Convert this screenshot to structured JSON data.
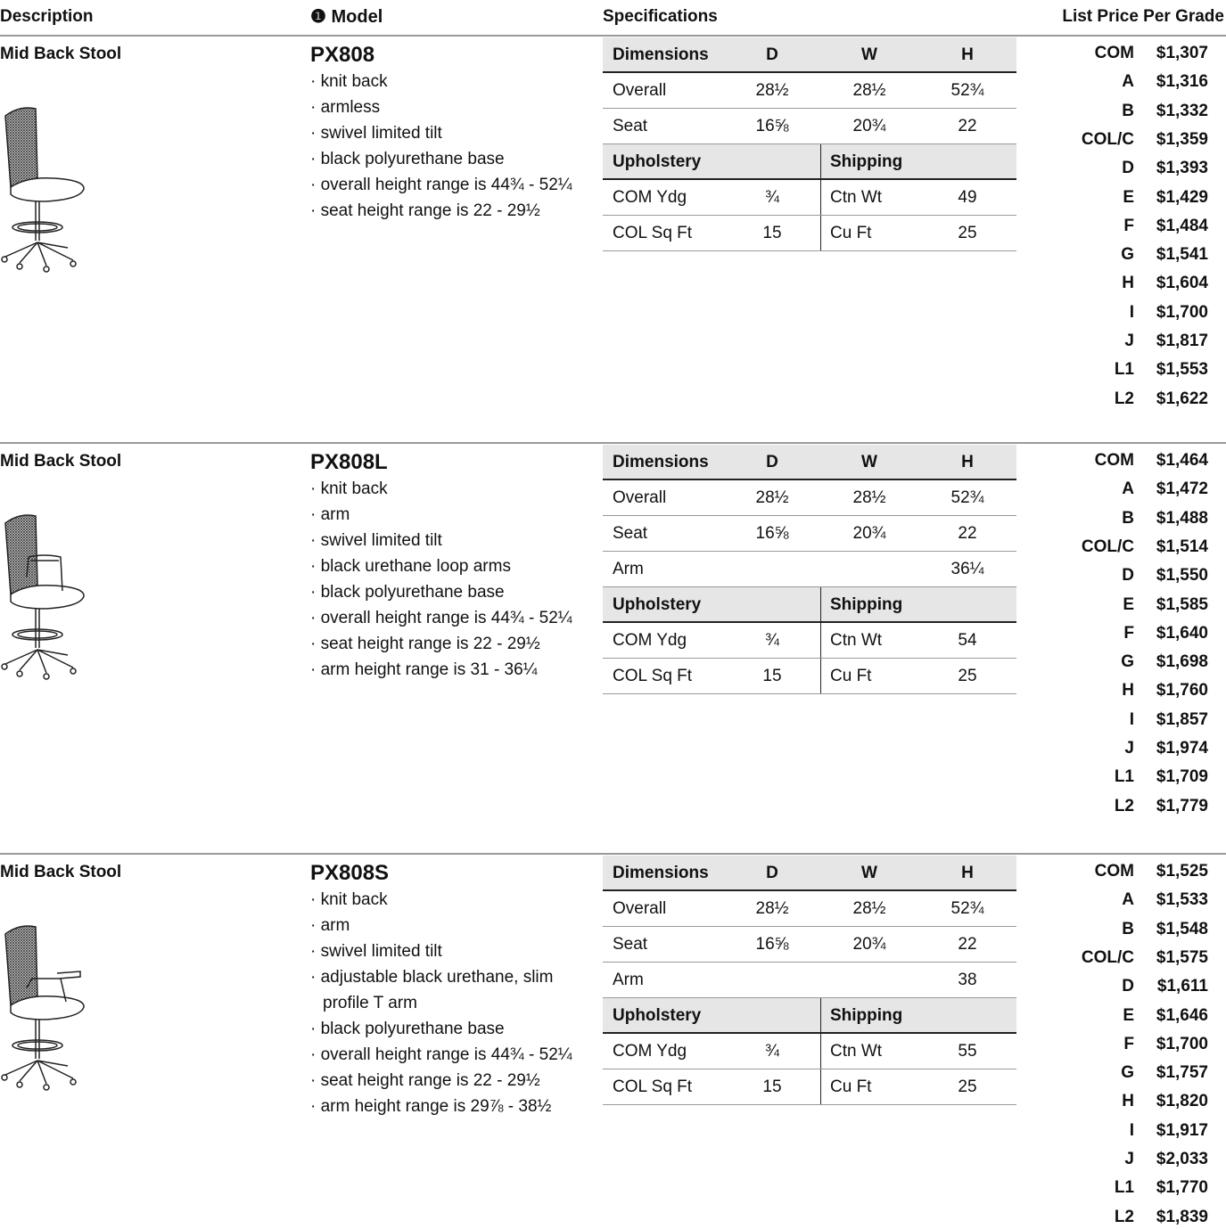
{
  "header": {
    "description": "Description",
    "model": "❶ Model",
    "specifications": "Specifications",
    "price": "List Price Per Grade"
  },
  "products": [
    {
      "description": "Mid Back Stool",
      "model": "PX808",
      "features": [
        "knit back",
        "armless",
        "swivel limited tilt",
        "black polyurethane base",
        "overall height range is 44¾ - 52¼",
        "seat height range is 22 - 29½"
      ],
      "dims_header": [
        "Dimensions",
        "D",
        "W",
        "H"
      ],
      "dims": [
        {
          "label": "Overall",
          "d": "28½",
          "w": "28½",
          "h": "52¾"
        },
        {
          "label": "Seat",
          "d": "16⅝",
          "w": "20¾",
          "h": "22"
        }
      ],
      "upholstery_header": [
        "Upholstery",
        "Shipping"
      ],
      "upholstery": [
        [
          "COM Ydg",
          "¾",
          "Ctn Wt",
          "49"
        ],
        [
          "COL Sq Ft",
          "15",
          "Cu Ft",
          "25"
        ]
      ],
      "prices": [
        {
          "grade": "COM",
          "price": "$1,307"
        },
        {
          "grade": "A",
          "price": "$1,316"
        },
        {
          "grade": "B",
          "price": "$1,332"
        },
        {
          "grade": "COL/C",
          "price": "$1,359"
        },
        {
          "grade": "D",
          "price": "$1,393"
        },
        {
          "grade": "E",
          "price": "$1,429"
        },
        {
          "grade": "F",
          "price": "$1,484"
        },
        {
          "grade": "G",
          "price": "$1,541"
        },
        {
          "grade": "H",
          "price": "$1,604"
        },
        {
          "grade": "I",
          "price": "$1,700"
        },
        {
          "grade": "J",
          "price": "$1,817"
        },
        {
          "grade": "L1",
          "price": "$1,553"
        },
        {
          "grade": "L2",
          "price": "$1,622"
        }
      ]
    },
    {
      "description": "Mid Back Stool",
      "model": "PX808L",
      "features": [
        "knit back",
        "arm",
        "swivel limited tilt",
        "black urethane loop arms",
        "black polyurethane base",
        "overall height range is 44¾ - 52¼",
        "seat height range is 22 - 29½",
        "arm height range is 31 - 36¼"
      ],
      "dims_header": [
        "Dimensions",
        "D",
        "W",
        "H"
      ],
      "dims": [
        {
          "label": "Overall",
          "d": "28½",
          "w": "28½",
          "h": "52¾"
        },
        {
          "label": "Seat",
          "d": "16⅝",
          "w": "20¾",
          "h": "22"
        },
        {
          "label": "Arm",
          "h": "36¼"
        }
      ],
      "upholstery_header": [
        "Upholstery",
        "Shipping"
      ],
      "upholstery": [
        [
          "COM Ydg",
          "¾",
          "Ctn Wt",
          "54"
        ],
        [
          "COL Sq Ft",
          "15",
          "Cu Ft",
          "25"
        ]
      ],
      "prices": [
        {
          "grade": "COM",
          "price": "$1,464"
        },
        {
          "grade": "A",
          "price": "$1,472"
        },
        {
          "grade": "B",
          "price": "$1,488"
        },
        {
          "grade": "COL/C",
          "price": "$1,514"
        },
        {
          "grade": "D",
          "price": "$1,550"
        },
        {
          "grade": "E",
          "price": "$1,585"
        },
        {
          "grade": "F",
          "price": "$1,640"
        },
        {
          "grade": "G",
          "price": "$1,698"
        },
        {
          "grade": "H",
          "price": "$1,760"
        },
        {
          "grade": "I",
          "price": "$1,857"
        },
        {
          "grade": "J",
          "price": "$1,974"
        },
        {
          "grade": "L1",
          "price": "$1,709"
        },
        {
          "grade": "L2",
          "price": "$1,779"
        }
      ]
    },
    {
      "description": "Mid Back Stool",
      "model": "PX808S",
      "features": [
        "knit back",
        "arm",
        "swivel limited tilt",
        "adjustable black urethane, slim profile T arm",
        "black polyurethane base",
        "overall height range is 44¾ - 52¼",
        "seat height range is 22 - 29½",
        "arm height range is 29⅞ - 38½"
      ],
      "dims_header": [
        "Dimensions",
        "D",
        "W",
        "H"
      ],
      "dims": [
        {
          "label": "Overall",
          "d": "28½",
          "w": "28½",
          "h": "52¾"
        },
        {
          "label": "Seat",
          "d": "16⅝",
          "w": "20¾",
          "h": "22"
        },
        {
          "label": "Arm",
          "h": "38"
        }
      ],
      "upholstery_header": [
        "Upholstery",
        "Shipping"
      ],
      "upholstery": [
        [
          "COM Ydg",
          "¾",
          "Ctn Wt",
          "55"
        ],
        [
          "COL Sq Ft",
          "15",
          "Cu Ft",
          "25"
        ]
      ],
      "prices": [
        {
          "grade": "COM",
          "price": "$1,525"
        },
        {
          "grade": "A",
          "price": "$1,533"
        },
        {
          "grade": "B",
          "price": "$1,548"
        },
        {
          "grade": "COL/C",
          "price": "$1,575"
        },
        {
          "grade": "D",
          "price": "$1,611"
        },
        {
          "grade": "E",
          "price": "$1,646"
        },
        {
          "grade": "F",
          "price": "$1,700"
        },
        {
          "grade": "G",
          "price": "$1,757"
        },
        {
          "grade": "H",
          "price": "$1,820"
        },
        {
          "grade": "I",
          "price": "$1,917"
        },
        {
          "grade": "J",
          "price": "$2,033"
        },
        {
          "grade": "L1",
          "price": "$1,770"
        },
        {
          "grade": "L2",
          "price": "$1,839"
        }
      ]
    }
  ]
}
